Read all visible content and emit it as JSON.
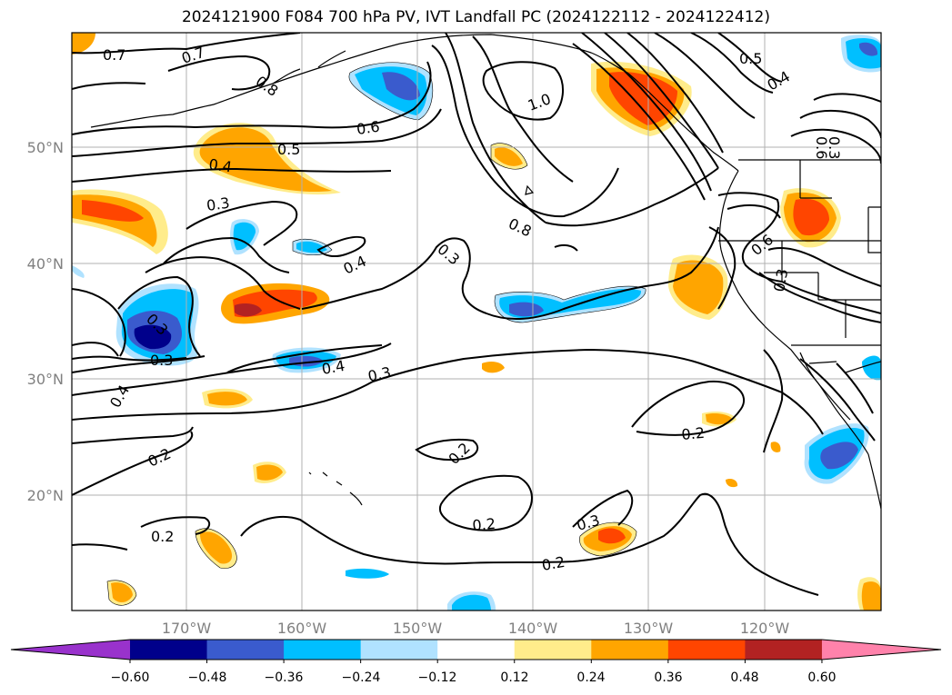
{
  "title": "2024121900 F084 700 hPa PV, IVT Landfall PC (2024122112 - 2024122412)",
  "map": {
    "lon_labels": [
      "170°W",
      "160°W",
      "150°W",
      "140°W",
      "130°W",
      "120°W"
    ],
    "lat_labels": [
      "50°N",
      "40°N",
      "30°N",
      "20°N"
    ],
    "contour_labels": [
      "0.7",
      "0.7",
      "0.8",
      "1.0",
      "0.5",
      "0.4",
      "0.6",
      "0.5",
      "0.4",
      "0.3",
      "0.8",
      "0.3",
      "0.4",
      "0.6",
      "0.3",
      "0.3",
      "0.3",
      "0.4",
      "0.3",
      "0.4",
      "0.2",
      "0.2",
      "0.2",
      "0.2",
      "0.3",
      "0.2",
      "0.2",
      "0.6",
      "0.3"
    ]
  },
  "colorbar": {
    "ticks": [
      "−0.60",
      "−0.48",
      "−0.36",
      "−0.24",
      "−0.12",
      "0.12",
      "0.24",
      "0.36",
      "0.48",
      "0.60"
    ],
    "colors": [
      "#9932cc",
      "#00008b",
      "#3a5bcd",
      "#00bfff",
      "#b0e2ff",
      "#ffffff",
      "#ffec8b",
      "#ffa500",
      "#ff4500",
      "#b22222",
      "#ff82ab"
    ]
  }
}
